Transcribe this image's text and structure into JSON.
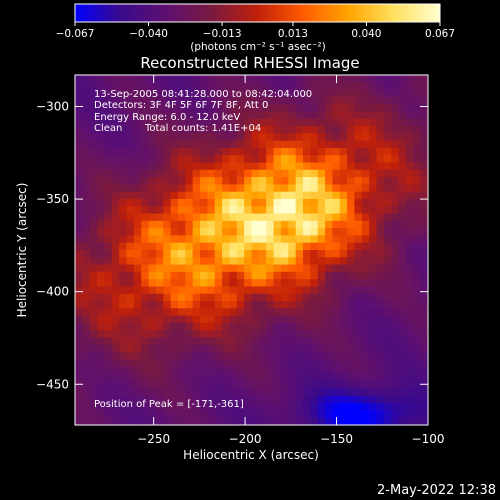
{
  "chart_data": {
    "type": "heatmap",
    "title": "Reconstructed RHESSI Image",
    "xlabel": "Heliocentric X (arcsec)",
    "ylabel": "Heliocentric Y (arcsec)",
    "xlim": [
      -293,
      -100
    ],
    "ylim": [
      -472,
      -283
    ],
    "x_ticks": [
      -250,
      -200,
      -150,
      -100
    ],
    "x_tick_labels": [
      "−250",
      "−200",
      "−150",
      "−100"
    ],
    "y_ticks": [
      -300,
      -350,
      -400,
      -450
    ],
    "y_tick_labels": [
      "−300",
      "−350",
      "−400",
      "−450"
    ],
    "colorbar": {
      "min": -0.067,
      "max": 0.067,
      "ticks": [
        -0.067,
        -0.04,
        -0.013,
        0.013,
        0.04,
        0.067
      ],
      "tick_labels": [
        "−0.067",
        "−0.040",
        "−0.013",
        "0.013",
        "0.040",
        "0.067"
      ],
      "unit_label": "(photons cm⁻² s⁻¹ asec⁻²)"
    },
    "colors": {
      "background": "#000000",
      "text": "#ffffff",
      "colormap": [
        "#0000ff",
        "#3a0a8c",
        "#5e1070",
        "#7a1a40",
        "#c0200a",
        "#ff5a00",
        "#ffa500",
        "#ffe060",
        "#ffffd0"
      ]
    },
    "annotations": {
      "time_range": "13-Sep-2005 08:41:28.000 to 08:42:04.000",
      "detectors": "Detectors: 3F 4F 5F 6F 7F 8F, Att 0",
      "energy": "Energy Range: 6.0 - 12.0 keV",
      "method": "Clean",
      "counts": "Total counts: 1.41E+04",
      "peak": "Position of Peak = [-171,-361]"
    },
    "peak": {
      "x": -171,
      "y": -361
    },
    "source": {
      "center_x": -200,
      "center_y": -365,
      "angle_deg": 25
    }
  },
  "footer": {
    "timestamp": "2-May-2022 12:38"
  }
}
